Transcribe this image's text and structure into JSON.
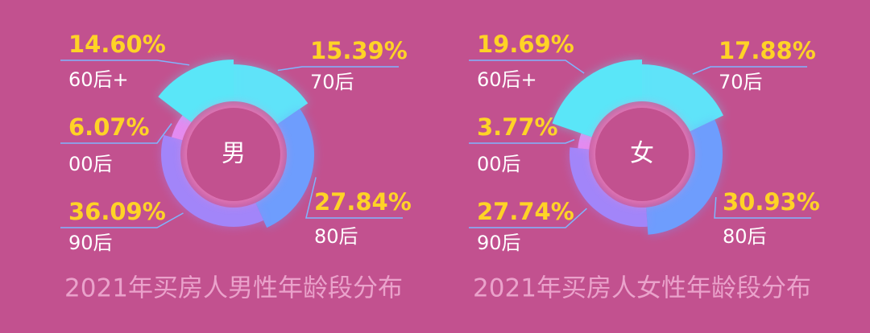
{
  "chart_data": [
    {
      "type": "pie",
      "title": "2021年买房人男性年龄段分布",
      "center_text": "男",
      "categories": [
        "70后",
        "80后",
        "90后",
        "00后",
        "60后+"
      ],
      "values": [
        15.39,
        27.84,
        36.09,
        6.07,
        14.6
      ],
      "value_labels": [
        "15.39%",
        "27.84%",
        "36.09%",
        "6.07%",
        "14.60%"
      ],
      "colors": [
        "#5fe3f9",
        "#6e9dfd",
        "#a285f9",
        "#e38bf1",
        "#5ae6f8"
      ]
    },
    {
      "type": "pie",
      "title": "2021年买房人女性年龄段分布",
      "center_text": "女",
      "categories": [
        "70后",
        "80后",
        "90后",
        "00后",
        "60后+"
      ],
      "values": [
        17.88,
        30.93,
        27.74,
        3.77,
        19.69
      ],
      "value_labels": [
        "17.88%",
        "30.93%",
        "27.74%",
        "3.77%",
        "19.69%"
      ],
      "colors": [
        "#5fe3f9",
        "#6e9dfd",
        "#a285f9",
        "#e38bf1",
        "#5ae6f8"
      ]
    }
  ]
}
